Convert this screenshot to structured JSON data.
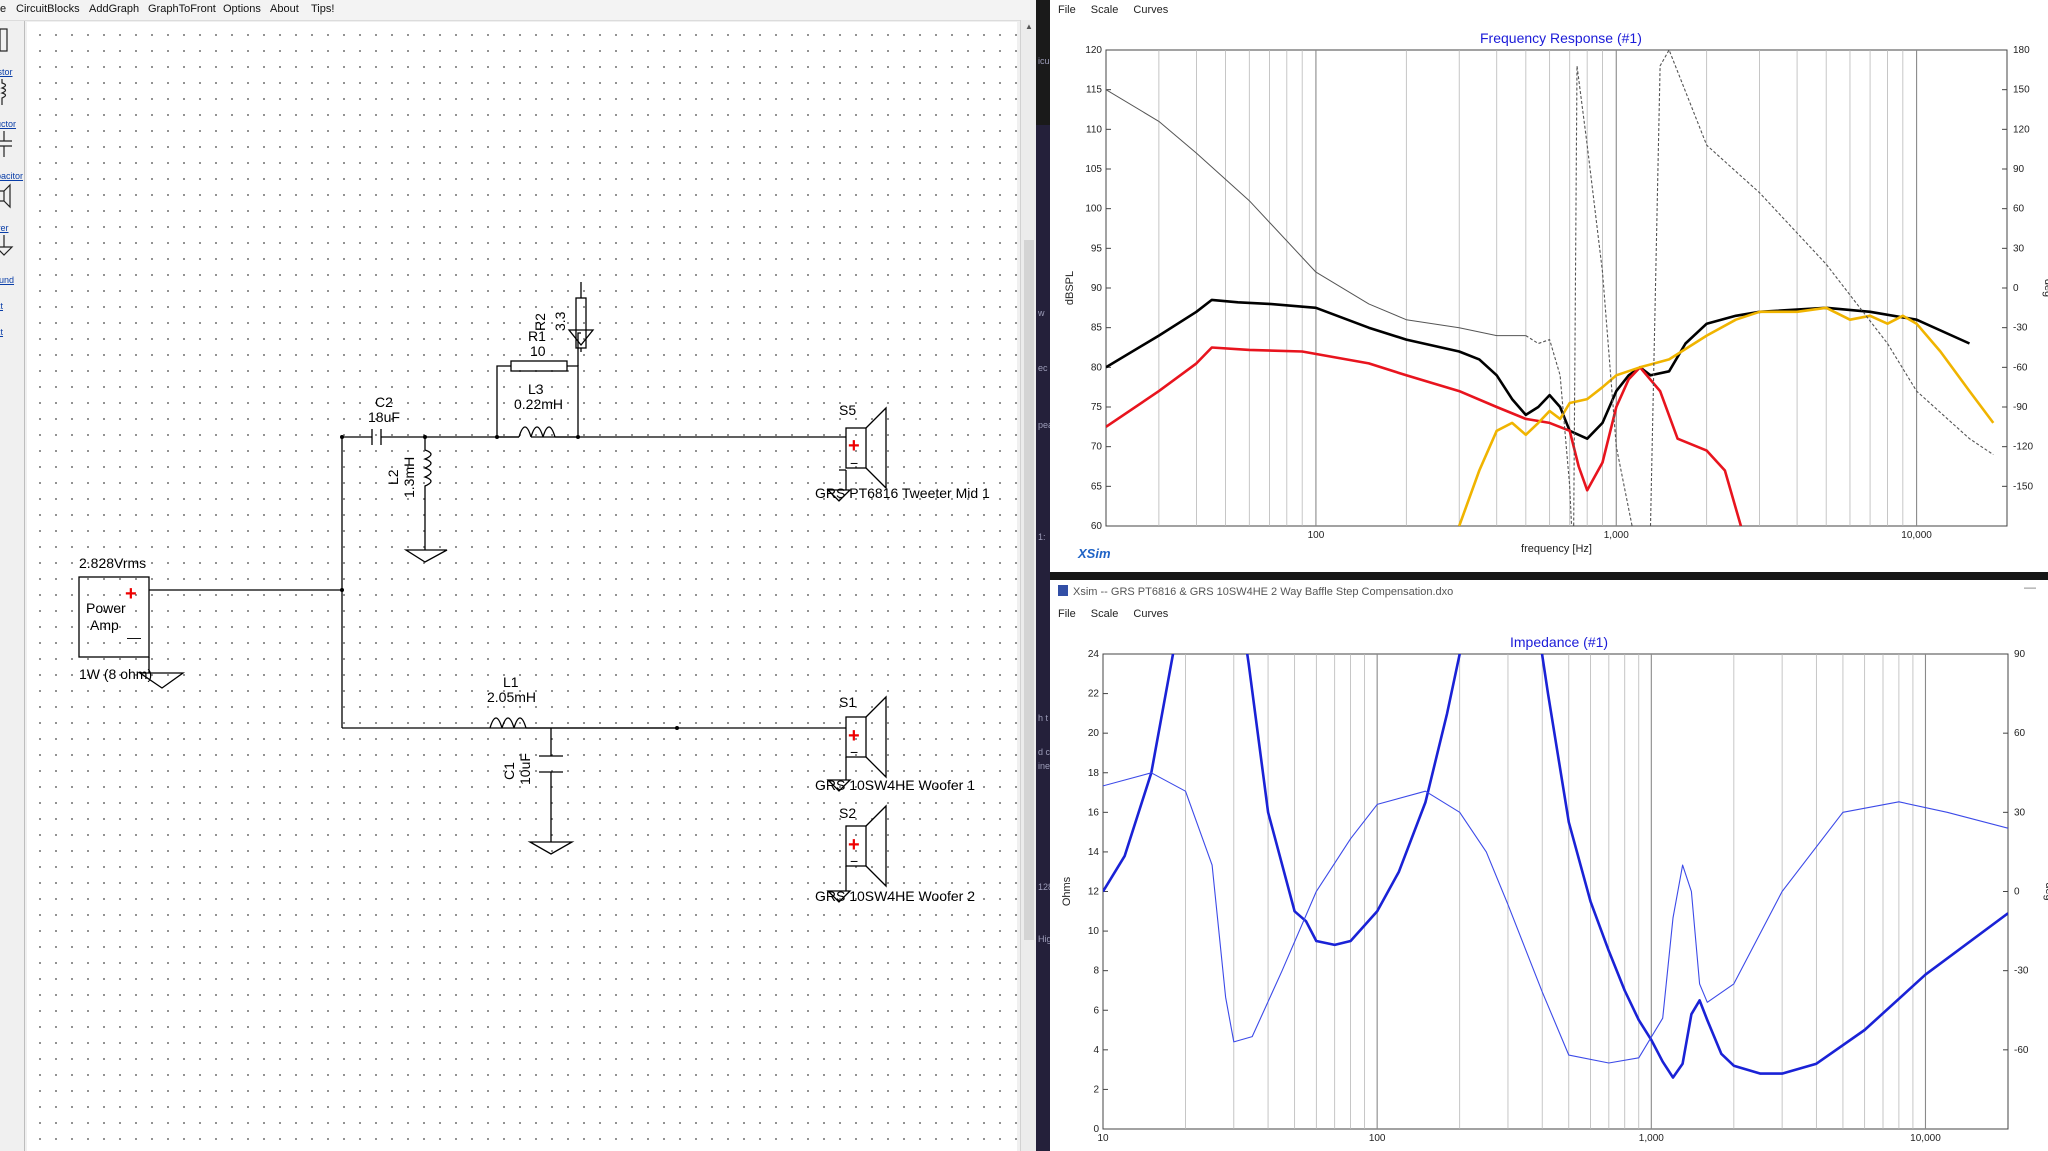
{
  "menu": [
    "e",
    "CircuitBlocks",
    "AddGraph",
    "GraphToFront",
    "Options",
    "About",
    "Tips!"
  ],
  "toolbox": {
    "items": [
      "sistor",
      "ductor",
      "apacitor",
      "river",
      "round",
      "ext",
      "ext"
    ]
  },
  "schematic": {
    "power_amp": {
      "voltage": "2.828Vrms",
      "line1": "Power",
      "line2": "Amp",
      "load": "1W (8 ohm)",
      "plus": "+",
      "minus": "—"
    },
    "parts": {
      "c2": {
        "name": "C2",
        "value": "18uF"
      },
      "l2": {
        "name": "L2",
        "value": "1.3mH"
      },
      "l3": {
        "name": "L3",
        "value": "0.22mH"
      },
      "r1": {
        "name": "R1",
        "value": "10"
      },
      "r2": {
        "name": "R2",
        "value": "3.3"
      },
      "l1": {
        "name": "L1",
        "value": "2.05mH"
      },
      "c1": {
        "name": "C1",
        "value": "10uF"
      }
    },
    "speakers": [
      {
        "id": "S5",
        "label": "GRS PT6816 Tweeter Mid 1"
      },
      {
        "id": "S1",
        "label": "GRS 10SW4HE Woofer 1"
      },
      {
        "id": "S2",
        "label": "GRS 10SW4HE Woofer 2"
      }
    ]
  },
  "side_strip": [
    "icul",
    "w",
    "ec",
    "pea",
    "1:",
    "h t",
    "d c",
    "ine",
    "128",
    "Hig"
  ],
  "freq_window": {
    "menu": [
      "File",
      "Scale",
      "Curves"
    ],
    "brand": "XSim",
    "chart_data": {
      "type": "line",
      "title": "Frequency Response (#1)",
      "xlabel": "frequency [Hz]",
      "ylabel": "dBSPL",
      "y2label": "deg",
      "x_scale": "log",
      "xlim": [
        20,
        20000
      ],
      "ylim": [
        60,
        120
      ],
      "y2lim": [
        -180,
        180
      ],
      "x_ticks": [
        "100",
        "1,000",
        "10,000"
      ],
      "y_ticks": [
        "60",
        "65",
        "70",
        "75",
        "80",
        "85",
        "90",
        "95",
        "100",
        "105",
        "110",
        "115",
        "120"
      ],
      "y2_ticks": [
        "-150",
        "-120",
        "-90",
        "-60",
        "-30",
        "0",
        "30",
        "60",
        "90",
        "120",
        "150",
        "180"
      ],
      "grid": true,
      "series": [
        {
          "color": "#000000",
          "style": "solid",
          "x": [
            20,
            30,
            40,
            45,
            55,
            70,
            100,
            150,
            200,
            300,
            350,
            400,
            450,
            500,
            550,
            600,
            650,
            700,
            800,
            900,
            1000,
            1100,
            1200,
            1300,
            1500,
            1700,
            2000,
            2500,
            3000,
            5000,
            7000,
            10000,
            15000
          ],
          "y": [
            80,
            84,
            87,
            88.5,
            88.2,
            88,
            87.5,
            85,
            83.5,
            82,
            81,
            79,
            76,
            74,
            75,
            76.5,
            75,
            72,
            71,
            73,
            77,
            79,
            80,
            79,
            79.5,
            83,
            85.5,
            86.5,
            87,
            87.5,
            87,
            86,
            83
          ]
        },
        {
          "color": "#e8141e",
          "style": "solid",
          "x": [
            20,
            30,
            40,
            45,
            60,
            90,
            150,
            200,
            300,
            400,
            500,
            600,
            700,
            750,
            800,
            900,
            1000,
            1100,
            1200,
            1400,
            1600,
            2000,
            2300,
            2600
          ],
          "y": [
            72.5,
            77,
            80.5,
            82.5,
            82.2,
            82,
            80.5,
            79,
            77,
            75,
            73.5,
            73,
            72,
            67.5,
            64.5,
            68,
            75,
            78.5,
            80,
            77,
            71,
            69.5,
            67,
            60
          ]
        },
        {
          "color": "#f0b400",
          "style": "solid",
          "x": [
            300,
            350,
            400,
            450,
            500,
            550,
            600,
            650,
            700,
            800,
            900,
            1000,
            1200,
            1500,
            2000,
            2500,
            3000,
            4000,
            5000,
            6000,
            7000,
            8000,
            9000,
            10000,
            12000,
            15000,
            18000
          ],
          "y": [
            60,
            67,
            72,
            73,
            71.5,
            73,
            74.5,
            73.5,
            75.5,
            76,
            77.5,
            79,
            80,
            81,
            84,
            86,
            87,
            87,
            87.5,
            86,
            86.5,
            85.5,
            86.5,
            85.5,
            82,
            77,
            73
          ]
        },
        {
          "color": "#555555",
          "style": "solid",
          "x": [
            20,
            30,
            40,
            60,
            100,
            150,
            200,
            300,
            400,
            500
          ],
          "y": [
            115,
            111,
            107,
            101,
            92,
            88,
            86,
            85,
            84,
            84
          ]
        },
        {
          "color": "#555555",
          "style": "dashed",
          "x": [
            500,
            550,
            600,
            650,
            700,
            720,
            740,
            800,
            900,
            1000,
            1200,
            1300,
            1400,
            1500,
            2000,
            3000,
            5000,
            8000,
            10000,
            15000,
            18000
          ],
          "y": [
            84,
            83,
            83.5,
            79,
            65,
            55,
            118,
            108,
            92,
            70,
            55,
            60,
            118,
            120,
            108,
            102,
            93,
            83,
            77,
            71,
            69
          ]
        }
      ]
    }
  },
  "imp_window": {
    "title": "Xsim -- GRS PT6816 & GRS 10SW4HE 2 Way Baffle Step Compensation.dxo",
    "menu": [
      "File",
      "Scale",
      "Curves"
    ],
    "min_button": "—",
    "chart_data": {
      "type": "line",
      "title": "Impedance (#1)",
      "ylabel": "Ohms",
      "y2label": "deg",
      "x_scale": "log",
      "xlim": [
        10,
        20000
      ],
      "ylim": [
        0,
        24
      ],
      "y2lim": [
        -90,
        90
      ],
      "x_ticks": [
        "10",
        "100",
        "1,000",
        "10,000"
      ],
      "y_ticks": [
        "0",
        "2",
        "4",
        "6",
        "8",
        "10",
        "12",
        "14",
        "16",
        "18",
        "20",
        "22",
        "24"
      ],
      "y2_ticks": [
        "-60",
        "-30",
        "0",
        "30",
        "60",
        "90"
      ],
      "grid": true,
      "series": [
        {
          "color": "#1a22d6",
          "style": "solid",
          "x": [
            10,
            12,
            15,
            18,
            21,
            25
          ],
          "y": [
            12,
            13.8,
            18,
            24,
            26,
            28
          ]
        },
        {
          "color": "#1a22d6",
          "style": "solid",
          "x": [
            32,
            34,
            40,
            50,
            55,
            60,
            70,
            80,
            100,
            120,
            150,
            180,
            200,
            220
          ],
          "y": [
            26,
            23.5,
            16,
            11,
            10.5,
            9.5,
            9.3,
            9.5,
            11,
            13,
            16.5,
            21,
            24,
            27
          ]
        },
        {
          "color": "#1a22d6",
          "style": "solid",
          "x": [
            380,
            420,
            500,
            600,
            700,
            800,
            900,
            1000,
            1100,
            1200,
            1300,
            1400,
            1500,
            1600,
            1800,
            2000,
            2500,
            3000,
            4000,
            6000,
            10000,
            20000
          ],
          "y": [
            26,
            22,
            15.5,
            11.5,
            9,
            7,
            5.5,
            4.5,
            3.4,
            2.6,
            3.3,
            5.8,
            6.5,
            5.5,
            3.8,
            3.2,
            2.8,
            2.8,
            3.3,
            5,
            7.8,
            10.9
          ]
        },
        {
          "color": "#3c4ae8",
          "style": "thin",
          "x": [
            10,
            15,
            20,
            25,
            28,
            30,
            35,
            45,
            60,
            80,
            100,
            150,
            200,
            250,
            300,
            400,
            500,
            700,
            900,
            1100,
            1200,
            1300,
            1400,
            1500,
            1600,
            2000,
            3000,
            5000,
            8000,
            12000,
            20000
          ],
          "y": [
            40,
            45,
            38,
            10,
            -40,
            -57,
            -55,
            -30,
            0,
            20,
            33,
            38,
            30,
            15,
            -5,
            -38,
            -62,
            -65,
            -63,
            -48,
            -10,
            10,
            0,
            -35,
            -42,
            -35,
            0,
            30,
            34,
            30,
            24
          ]
        }
      ]
    }
  }
}
